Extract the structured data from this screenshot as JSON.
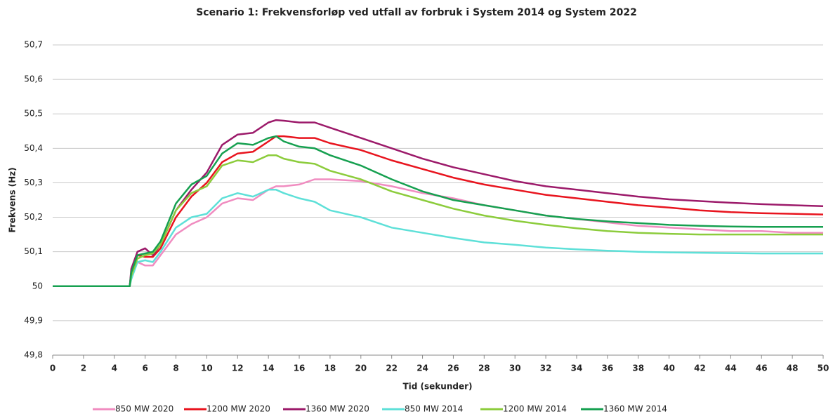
{
  "chart_data": {
    "type": "line",
    "title": "Scenario 1: Frekvensforløp ved utfall av forbruk i System 2014 og System 2022",
    "x_label": "Tid (sekunder)",
    "y_label": "Frekvens (Hz)",
    "x": [
      0,
      5,
      5.1,
      5.5,
      6,
      6.5,
      7,
      8,
      9,
      10,
      11,
      12,
      13,
      14,
      14.5,
      15,
      16,
      17,
      18,
      20,
      22,
      24,
      26,
      28,
      30,
      32,
      34,
      36,
      38,
      40,
      42,
      44,
      46,
      48,
      50
    ],
    "series": [
      {
        "name": "850 MW 2020",
        "color": "#f08cc0",
        "values": [
          50,
          50,
          50.03,
          50.07,
          50.06,
          50.06,
          50.09,
          50.15,
          50.18,
          50.2,
          50.24,
          50.255,
          50.25,
          50.28,
          50.29,
          50.29,
          50.295,
          50.31,
          50.31,
          50.305,
          50.29,
          50.27,
          50.255,
          50.235,
          50.22,
          50.205,
          50.195,
          50.185,
          50.175,
          50.17,
          50.165,
          50.16,
          50.16,
          50.155,
          50.155
        ]
      },
      {
        "name": "1200 MW 2020",
        "color": "#e8141e",
        "values": [
          50,
          50,
          50.04,
          50.09,
          50.085,
          50.085,
          50.11,
          50.2,
          50.26,
          50.3,
          50.36,
          50.385,
          50.39,
          50.42,
          50.435,
          50.435,
          50.43,
          50.43,
          50.415,
          50.395,
          50.365,
          50.34,
          50.315,
          50.295,
          50.28,
          50.265,
          50.255,
          50.245,
          50.235,
          50.228,
          50.22,
          50.215,
          50.212,
          50.21,
          50.208
        ]
      },
      {
        "name": "1360 MW 2020",
        "color": "#9c1a6a",
        "values": [
          50,
          50,
          50.05,
          50.1,
          50.11,
          50.09,
          50.12,
          50.22,
          50.28,
          50.33,
          50.41,
          50.44,
          50.445,
          50.475,
          50.482,
          50.48,
          50.475,
          50.475,
          50.46,
          50.43,
          50.4,
          50.37,
          50.345,
          50.325,
          50.305,
          50.29,
          50.28,
          50.27,
          50.26,
          50.252,
          50.247,
          50.242,
          50.238,
          50.235,
          50.232
        ]
      },
      {
        "name": "850 MW 2014",
        "color": "#5ee0d8",
        "values": [
          50,
          50,
          50.02,
          50.07,
          50.075,
          50.07,
          50.1,
          50.17,
          50.2,
          50.21,
          50.255,
          50.27,
          50.26,
          50.28,
          50.28,
          50.27,
          50.255,
          50.245,
          50.22,
          50.2,
          50.17,
          50.155,
          50.14,
          50.127,
          50.12,
          50.112,
          50.107,
          50.103,
          50.1,
          50.098,
          50.097,
          50.096,
          50.095,
          50.095,
          50.095
        ]
      },
      {
        "name": "1200 MW 2014",
        "color": "#8ccc3c",
        "values": [
          50,
          50,
          50.03,
          50.08,
          50.09,
          50.095,
          50.12,
          50.22,
          50.27,
          50.29,
          50.35,
          50.365,
          50.36,
          50.38,
          50.38,
          50.37,
          50.36,
          50.355,
          50.335,
          50.31,
          50.275,
          50.25,
          50.225,
          50.205,
          50.19,
          50.178,
          50.168,
          50.16,
          50.155,
          50.152,
          50.15,
          50.15,
          50.15,
          50.15,
          50.15
        ]
      },
      {
        "name": "1360 MW 2014",
        "color": "#16a050",
        "values": [
          50,
          50,
          50.04,
          50.09,
          50.095,
          50.1,
          50.13,
          50.24,
          50.295,
          50.32,
          50.385,
          50.415,
          50.41,
          50.43,
          50.435,
          50.42,
          50.405,
          50.4,
          50.38,
          50.35,
          50.31,
          50.275,
          50.25,
          50.235,
          50.22,
          50.205,
          50.195,
          50.188,
          50.183,
          50.178,
          50.175,
          50.173,
          50.172,
          50.172,
          50.172
        ]
      }
    ],
    "xlim": [
      0,
      50
    ],
    "xticks": [
      0,
      2,
      4,
      6,
      8,
      10,
      12,
      14,
      16,
      18,
      20,
      22,
      24,
      26,
      28,
      30,
      32,
      34,
      36,
      38,
      40,
      42,
      44,
      46,
      48,
      50
    ],
    "ylim": [
      49.8,
      50.7
    ],
    "yticks": [
      {
        "value": 49.8,
        "label": "49,8"
      },
      {
        "value": 49.9,
        "label": "49,9"
      },
      50,
      {
        "value": 50.1,
        "label": "50,1"
      },
      {
        "value": 50.2,
        "label": "50,2"
      },
      {
        "value": 50.3,
        "label": "50,3"
      },
      {
        "value": 50.4,
        "label": "50,4"
      },
      {
        "value": 50.5,
        "label": "50,5"
      },
      {
        "value": 50.6,
        "label": "50,6"
      },
      {
        "value": 50.7,
        "label": "50,7"
      }
    ],
    "grid": true,
    "legend": "bottom"
  }
}
